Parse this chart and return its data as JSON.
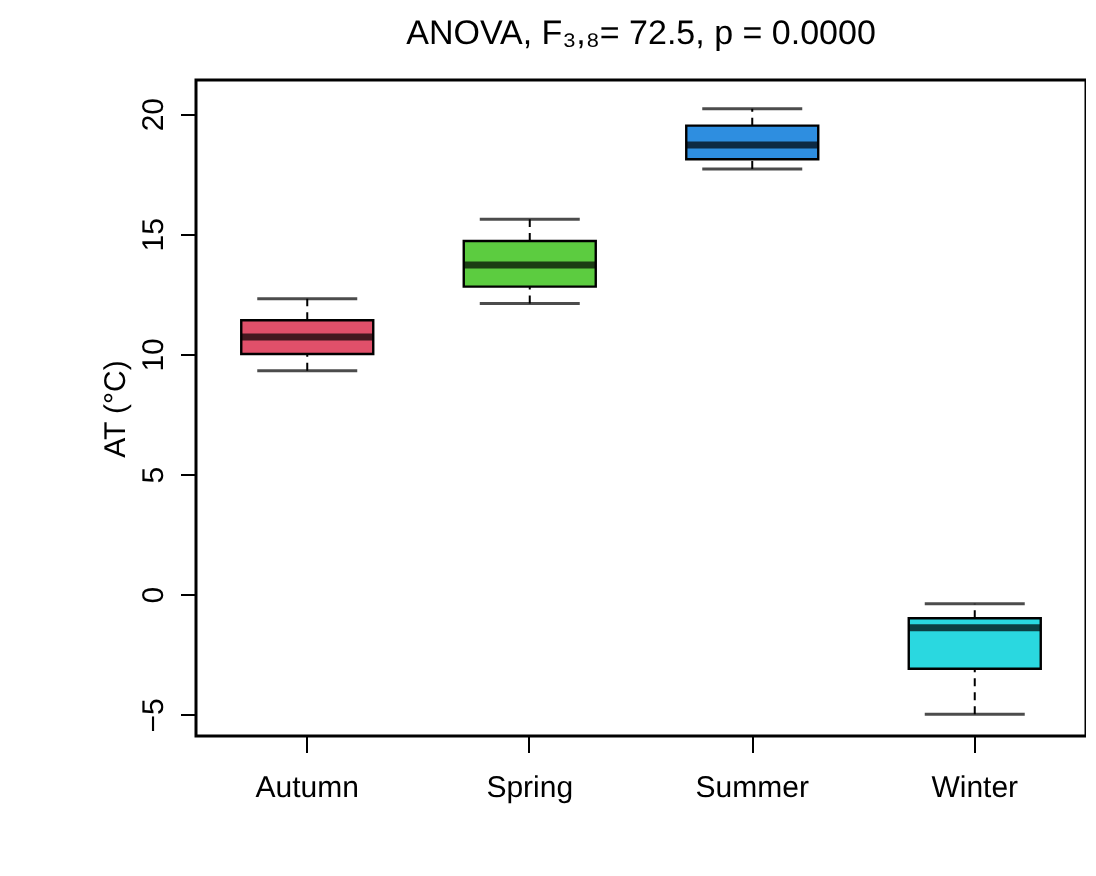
{
  "chart_data": {
    "type": "box",
    "title": "ANOVA, F₃,₈= 72.5, p = 0.0000",
    "ylabel": "AT (°C)",
    "categories": [
      "Autumn",
      "Spring",
      "Summer",
      "Winter"
    ],
    "colors": [
      "#e0506a",
      "#5ccc40",
      "#2e8ee0",
      "#2ad8e0"
    ],
    "boxes": [
      {
        "low": 9.3,
        "q1": 10.0,
        "median": 10.7,
        "q3": 11.4,
        "high": 12.3
      },
      {
        "low": 12.1,
        "q1": 12.8,
        "median": 13.7,
        "q3": 14.7,
        "high": 15.6
      },
      {
        "low": 17.7,
        "q1": 18.1,
        "median": 18.7,
        "q3": 19.5,
        "high": 20.2
      },
      {
        "low": -5.0,
        "q1": -3.1,
        "median": -1.4,
        "q3": -1.0,
        "high": -0.4
      }
    ],
    "ylim": [
      -5.9,
      21.4
    ],
    "yticks": [
      -5,
      0,
      5,
      10,
      15,
      20
    ],
    "grid": false
  }
}
